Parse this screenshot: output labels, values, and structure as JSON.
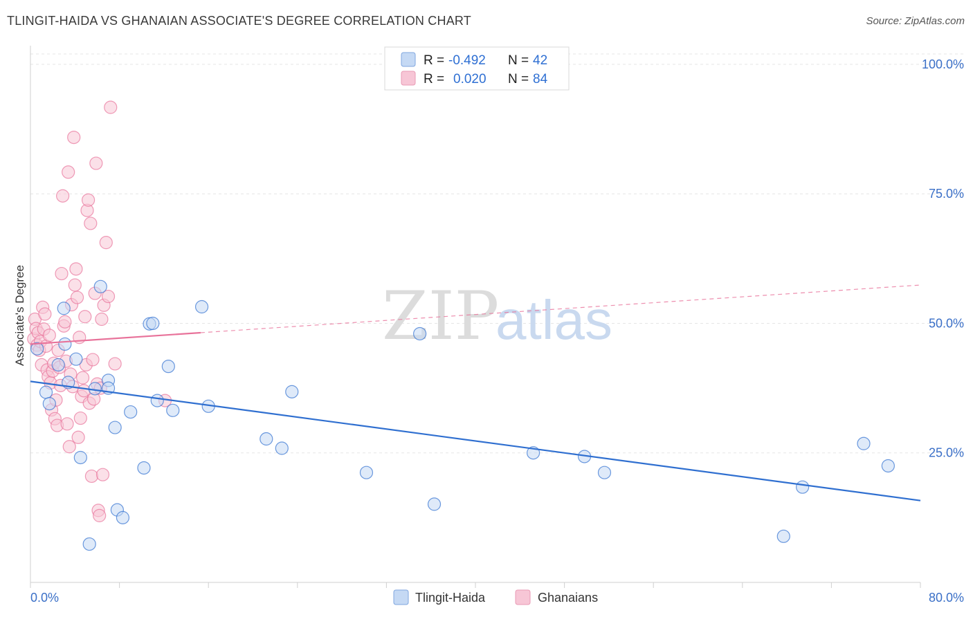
{
  "title": "TLINGIT-HAIDA VS GHANAIAN ASSOCIATE'S DEGREE CORRELATION CHART",
  "source": "Source: ZipAtlas.com",
  "watermark": {
    "zip": "ZIP",
    "atlas": "atlas"
  },
  "colors": {
    "blue": "#2f6fd0",
    "blue_fill": "#c5d9f4",
    "pink": "#e8729a",
    "pink_fill": "#f7c6d6",
    "tick": "#3a6fc7"
  },
  "legend": {
    "rows": [
      {
        "r_label": "R =",
        "r_value": "-0.492",
        "n_label": "N =",
        "n_value": "42"
      },
      {
        "r_label": "R =",
        "r_value": "0.020",
        "n_label": "N =",
        "n_value": "84"
      }
    ]
  },
  "chart_data": {
    "type": "scatter",
    "ylabel": "Associate's Degree",
    "xlim": [
      0,
      80
    ],
    "ylim": [
      0,
      102
    ],
    "x_tick_labels": [
      "0.0%",
      "80.0%"
    ],
    "y_ticks": [
      25,
      50,
      75,
      100
    ],
    "y_tick_labels": [
      "25.0%",
      "50.0%",
      "75.0%",
      "100.0%"
    ],
    "legend_placement": "bottom-center",
    "series": [
      {
        "name": "Tlingit-Haida",
        "trend": {
          "x": [
            0,
            80
          ],
          "y": [
            38.8,
            15.8
          ],
          "style": "solid"
        },
        "points": [
          [
            0.6,
            45.1
          ],
          [
            1.4,
            36.7
          ],
          [
            1.7,
            34.5
          ],
          [
            2.5,
            42.0
          ],
          [
            3.0,
            52.9
          ],
          [
            3.1,
            46.0
          ],
          [
            3.4,
            38.6
          ],
          [
            4.1,
            43.1
          ],
          [
            4.5,
            24.1
          ],
          [
            5.3,
            7.4
          ],
          [
            5.8,
            37.4
          ],
          [
            6.3,
            57.1
          ],
          [
            7.0,
            39.0
          ],
          [
            7.0,
            37.5
          ],
          [
            7.6,
            29.9
          ],
          [
            7.8,
            14.0
          ],
          [
            8.3,
            12.5
          ],
          [
            9.0,
            32.9
          ],
          [
            10.2,
            22.1
          ],
          [
            10.7,
            49.9
          ],
          [
            11.0,
            50.0
          ],
          [
            11.4,
            35.1
          ],
          [
            12.4,
            41.7
          ],
          [
            12.8,
            33.2
          ],
          [
            15.4,
            53.2
          ],
          [
            16.0,
            34.0
          ],
          [
            21.2,
            27.7
          ],
          [
            22.6,
            25.9
          ],
          [
            23.5,
            36.8
          ],
          [
            30.2,
            21.2
          ],
          [
            35.0,
            48.0
          ],
          [
            36.3,
            15.1
          ],
          [
            45.2,
            25.0
          ],
          [
            49.8,
            24.3
          ],
          [
            51.6,
            21.2
          ],
          [
            67.7,
            8.9
          ],
          [
            69.4,
            18.4
          ],
          [
            74.9,
            26.8
          ],
          [
            77.1,
            22.5
          ]
        ]
      },
      {
        "name": "Ghanaians",
        "trend": {
          "x": [
            0,
            15.3
          ],
          "y": [
            46.0,
            48.2
          ],
          "style": "solid",
          "extended": {
            "x": [
              15.3,
              80
            ],
            "y": [
              48.2,
              57.4
            ],
            "style": "dashed"
          }
        },
        "points": [
          [
            0.3,
            47.0
          ],
          [
            0.4,
            50.8
          ],
          [
            0.5,
            49.0
          ],
          [
            0.6,
            45.8
          ],
          [
            0.7,
            48.2
          ],
          [
            0.8,
            44.8
          ],
          [
            0.9,
            46.5
          ],
          [
            1.0,
            42.0
          ],
          [
            1.1,
            53.1
          ],
          [
            1.2,
            48.9
          ],
          [
            1.3,
            51.8
          ],
          [
            1.4,
            45.6
          ],
          [
            1.5,
            41.0
          ],
          [
            1.6,
            39.7
          ],
          [
            1.7,
            47.7
          ],
          [
            1.8,
            38.5
          ],
          [
            1.9,
            33.3
          ],
          [
            2.0,
            40.8
          ],
          [
            2.1,
            42.3
          ],
          [
            2.2,
            31.6
          ],
          [
            2.3,
            35.2
          ],
          [
            2.4,
            30.3
          ],
          [
            2.5,
            44.8
          ],
          [
            2.6,
            41.5
          ],
          [
            2.7,
            38.0
          ],
          [
            2.8,
            59.6
          ],
          [
            2.9,
            74.6
          ],
          [
            3.0,
            49.5
          ],
          [
            3.1,
            50.3
          ],
          [
            3.2,
            42.7
          ],
          [
            3.3,
            30.6
          ],
          [
            3.4,
            79.2
          ],
          [
            3.5,
            26.2
          ],
          [
            3.6,
            40.2
          ],
          [
            3.7,
            53.6
          ],
          [
            3.8,
            37.8
          ],
          [
            3.9,
            85.9
          ],
          [
            4.0,
            57.4
          ],
          [
            4.1,
            60.5
          ],
          [
            4.2,
            55.0
          ],
          [
            4.3,
            28.0
          ],
          [
            4.4,
            47.3
          ],
          [
            4.5,
            31.7
          ],
          [
            4.6,
            35.9
          ],
          [
            4.7,
            39.5
          ],
          [
            4.8,
            37.0
          ],
          [
            4.9,
            51.3
          ],
          [
            5.0,
            42.0
          ],
          [
            5.1,
            71.8
          ],
          [
            5.2,
            73.8
          ],
          [
            5.3,
            34.6
          ],
          [
            5.4,
            69.3
          ],
          [
            5.5,
            20.5
          ],
          [
            5.6,
            43.0
          ],
          [
            5.7,
            35.4
          ],
          [
            5.8,
            55.8
          ],
          [
            5.9,
            80.9
          ],
          [
            6.0,
            38.3
          ],
          [
            6.1,
            13.9
          ],
          [
            6.2,
            12.9
          ],
          [
            6.3,
            37.5
          ],
          [
            6.4,
            50.8
          ],
          [
            6.5,
            20.8
          ],
          [
            6.6,
            53.5
          ],
          [
            6.8,
            65.6
          ],
          [
            7.0,
            55.2
          ],
          [
            7.2,
            91.7
          ],
          [
            7.6,
            42.2
          ],
          [
            12.1,
            35.1
          ]
        ]
      }
    ]
  }
}
